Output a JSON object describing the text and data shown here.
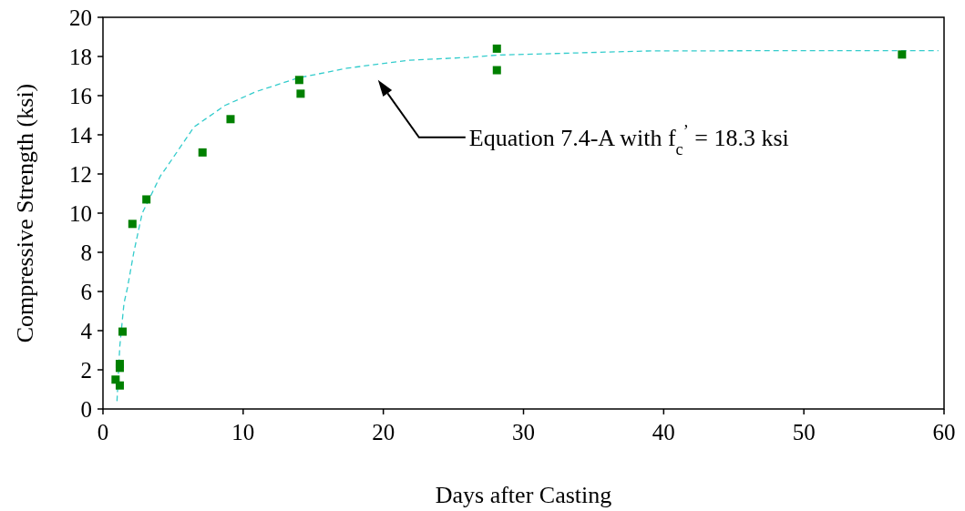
{
  "chart_data": {
    "type": "scatter",
    "xlabel": "Days after Casting",
    "ylabel": "Compressive Strength (ksi)",
    "xlim": [
      0,
      60
    ],
    "xticks": [
      0,
      10,
      20,
      30,
      40,
      50,
      60
    ],
    "ylim": [
      0,
      20
    ],
    "yticks": [
      0,
      2,
      4,
      6,
      8,
      10,
      12,
      14,
      16,
      18,
      20
    ],
    "grid": false,
    "series": [
      {
        "type": "line",
        "color": "#33cccc",
        "line_style": "dashed",
        "marker": "none",
        "x": [
          1.0,
          1.2,
          1.5,
          1.75,
          2.2,
          2.8,
          4.1,
          4.4,
          6.5,
          8.7,
          10.9,
          13.9,
          17.4,
          21.7,
          26,
          28.1,
          38.8,
          50.3,
          59.6
        ],
        "values": [
          0.4,
          3.2,
          5.4,
          6.2,
          8.0,
          10.0,
          11.9,
          12.2,
          14.4,
          15.5,
          16.2,
          16.9,
          17.4,
          17.8,
          17.95,
          18.07,
          18.28,
          18.3,
          18.3
        ]
      },
      {
        "color": "#008000",
        "marker": "square",
        "x": [
          0.9,
          1.2,
          1.2,
          1.2,
          1.4,
          2.1,
          3.1,
          7.1,
          9.1,
          14.0,
          14.1,
          28.1,
          28.1,
          57.0
        ],
        "values": [
          1.5,
          1.2,
          2.3,
          2.1,
          3.95,
          9.45,
          10.7,
          13.1,
          14.8,
          16.8,
          16.1,
          18.4,
          17.3,
          18.1
        ]
      }
    ],
    "annotations": [
      "Equation 7.4-A with f$_{c}$$^{’}$ = 18.3 ksi"
    ]
  }
}
